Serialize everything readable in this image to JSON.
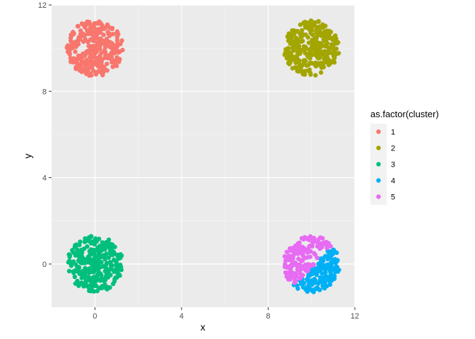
{
  "chart_data": {
    "type": "scatter",
    "title": "",
    "xlabel": "x",
    "ylabel": "y",
    "xlim": [
      -2,
      12
    ],
    "ylim": [
      -2,
      12
    ],
    "x_ticks": [
      0,
      4,
      8,
      12
    ],
    "y_ticks": [
      0,
      4,
      8,
      12
    ],
    "x_tick_labels": [
      "0",
      "4",
      "8",
      "12"
    ],
    "y_tick_labels": [
      "0",
      "4",
      "8",
      "12"
    ],
    "grid": true,
    "panel_background": "#EBEBEB",
    "legend": {
      "title": "as.factor(cluster)",
      "position": "right",
      "entries": [
        {
          "label": "1",
          "color": "#F8766D"
        },
        {
          "label": "2",
          "color": "#A3A500"
        },
        {
          "label": "3",
          "color": "#00BF7D"
        },
        {
          "label": "4",
          "color": "#00B0F6"
        },
        {
          "label": "5",
          "color": "#E76BF3"
        }
      ]
    },
    "series": [
      {
        "name": "1",
        "color": "#F8766D",
        "center": [
          0,
          10
        ],
        "radius": 1.3,
        "n_points": 300
      },
      {
        "name": "2",
        "color": "#A3A500",
        "center": [
          10,
          10
        ],
        "radius": 1.3,
        "n_points": 300
      },
      {
        "name": "3",
        "color": "#00BF7D",
        "center": [
          0,
          0
        ],
        "radius": 1.3,
        "n_points": 300
      },
      {
        "name": "4",
        "color": "#00B0F6",
        "center": [
          10,
          0
        ],
        "radius": 1.3,
        "n_points": 150,
        "side": "lower-right"
      },
      {
        "name": "5",
        "color": "#E76BF3",
        "center": [
          10,
          0
        ],
        "radius": 1.3,
        "n_points": 150,
        "side": "upper-left"
      }
    ]
  }
}
